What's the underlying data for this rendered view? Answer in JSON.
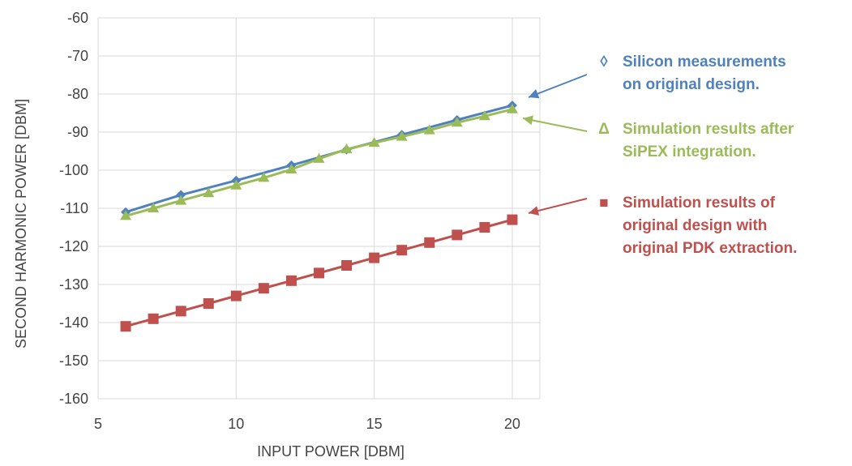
{
  "chart_data": {
    "type": "line",
    "xlabel": "INPUT POWER [DBM]",
    "ylabel": "SECOND HARMONIC POWER  [DBM]",
    "xlim": [
      5,
      21
    ],
    "ylim": [
      -160,
      -60
    ],
    "xticks": [
      5,
      10,
      15,
      20
    ],
    "yticks": [
      -60,
      -70,
      -80,
      -90,
      -100,
      -110,
      -120,
      -130,
      -140,
      -150,
      -160
    ],
    "grid": true,
    "legend_placement": "right",
    "series": [
      {
        "key": "silicon",
        "color": "#4f81bd",
        "marker": "diamond",
        "legend_symbol": "◊",
        "legend_lines": [
          "Silicon measurements",
          "on original design."
        ],
        "x": [
          6,
          8,
          10,
          12,
          14,
          16,
          18,
          20
        ],
        "y": [
          -111,
          -106.5,
          -102.7,
          -98.7,
          -94.6,
          -90.7,
          -86.8,
          -83
        ]
      },
      {
        "key": "sipex",
        "color": "#9bbb59",
        "marker": "triangle",
        "legend_symbol": "Δ",
        "legend_lines": [
          "Simulation results after",
          "SiPEX integration."
        ],
        "x": [
          6,
          7,
          8,
          9,
          10,
          11,
          12,
          13,
          14,
          15,
          16,
          17,
          18,
          19,
          20
        ],
        "y": [
          -112,
          -110,
          -108,
          -106,
          -104,
          -102,
          -99.8,
          -97,
          -94.5,
          -92.8,
          -91.2,
          -89.5,
          -87.5,
          -85.8,
          -84
        ]
      },
      {
        "key": "pdk",
        "color": "#c0504d",
        "marker": "square",
        "legend_symbol": "■",
        "legend_lines": [
          "Simulation results of",
          "original design with",
          "original PDK extraction."
        ],
        "x": [
          6,
          7,
          8,
          9,
          10,
          11,
          12,
          13,
          14,
          15,
          16,
          17,
          18,
          19,
          20
        ],
        "y": [
          -141,
          -139,
          -137,
          -135,
          -133,
          -131,
          -129,
          -127,
          -125,
          -123,
          -121,
          -119,
          -117,
          -115,
          -113
        ]
      }
    ]
  }
}
